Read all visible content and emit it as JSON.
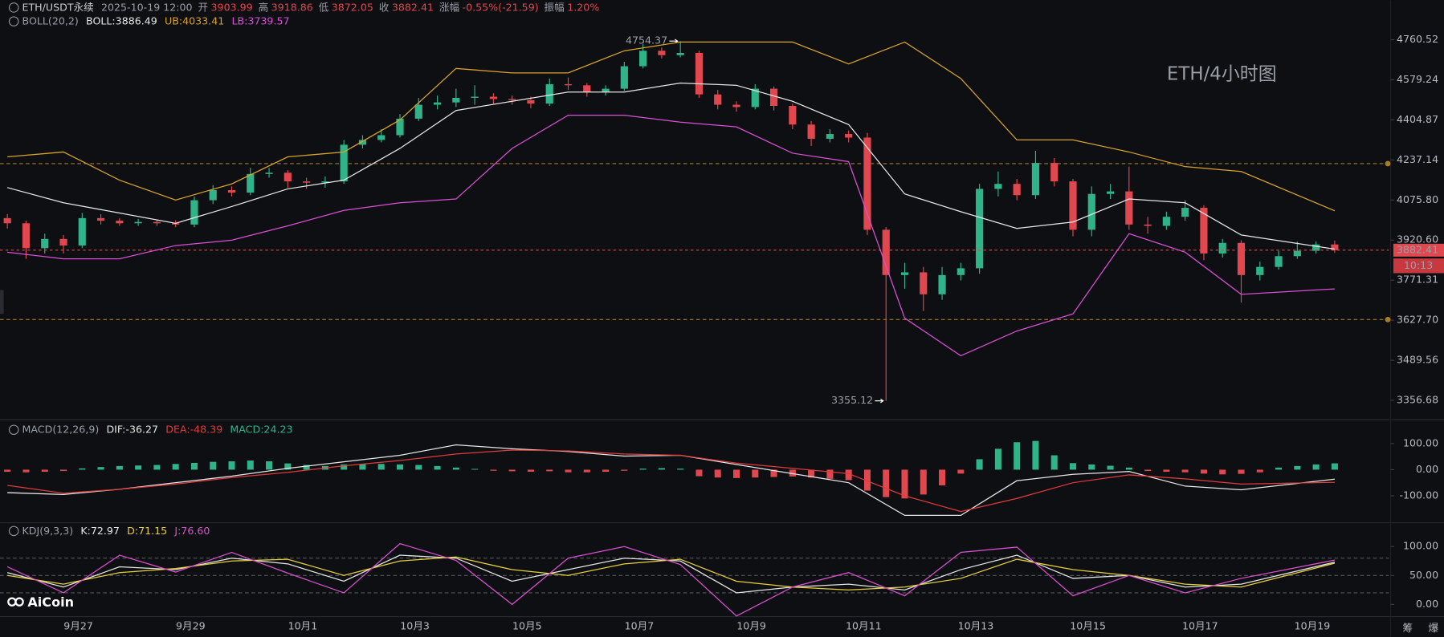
{
  "header": {
    "symbol": "ETH/USDT永续",
    "time": "2025-10-19 12:00",
    "fields": [
      {
        "label": "开",
        "value": "3903.99"
      },
      {
        "label": "高",
        "value": "3918.86"
      },
      {
        "label": "低",
        "value": "3872.05"
      },
      {
        "label": "收",
        "value": "3882.41"
      },
      {
        "label": "涨幅",
        "value": "-0.55%(-21.59)"
      },
      {
        "label": "振幅",
        "value": "1.20%"
      }
    ]
  },
  "countdown": "10:13",
  "watermark": "AiCoin",
  "toolbar": [
    "筹",
    "爆"
  ],
  "chart_data": [
    {
      "type": "candlestick",
      "annotation": "ETH/4小时图",
      "indicator": "BOLL(20,2)",
      "log_scale": true,
      "grid": false,
      "ylim": [
        3312,
        4816
      ],
      "yticks": [
        4760.52,
        4579.24,
        4404.87,
        4237.14,
        {
          "value": 4075.8,
          "label": "4075.80"
        },
        {
          "value": 3920.6,
          "label": "3920.60"
        },
        3771.31,
        {
          "value": 3627.7,
          "label": "3627.70"
        },
        3489.56,
        3356.68
      ],
      "xticks": [
        {
          "value": 3.8,
          "label": "9月27"
        },
        {
          "value": 9.8,
          "label": "9月29"
        },
        {
          "value": 15.8,
          "label": "10月1"
        },
        {
          "value": 21.8,
          "label": "10月3"
        },
        {
          "value": 27.8,
          "label": "10月5"
        },
        {
          "value": 33.8,
          "label": "10月7"
        },
        {
          "value": 39.8,
          "label": "10月9"
        },
        {
          "value": 45.8,
          "label": "10月11"
        },
        {
          "value": 51.8,
          "label": "10月13"
        },
        {
          "value": 57.8,
          "label": "10月15"
        },
        {
          "value": 63.8,
          "label": "10月17"
        },
        {
          "value": 69.8,
          "label": "10月19"
        }
      ],
      "up_color": "#2fb489",
      "down_color": "#e0474f",
      "level_color": "#a87c22",
      "levels": [
        4222,
        3630
      ],
      "candles": {
        "open": [
          4005,
          3985,
          3890,
          3925,
          3900,
          4005,
          3995,
          3985,
          3990,
          3985,
          3980,
          4075,
          4115,
          4105,
          4180,
          4185,
          4150,
          4145,
          4150,
          4300,
          4320,
          4340,
          4410,
          4470,
          4480,
          4500,
          4505,
          4495,
          4490,
          4475,
          4560,
          4555,
          4525,
          4540,
          4640,
          4710,
          4690,
          4700,
          4515,
          4470,
          4460,
          4540,
          4465,
          4385,
          4325,
          4345,
          4330,
          3960,
          3790,
          3800,
          3720,
          3790,
          3815,
          4120,
          4140,
          4095,
          4225,
          4150,
          3960,
          4100,
          4110,
          3980,
          3975,
          4010,
          4045,
          3870,
          3910,
          3790,
          3820,
          3860,
          3880,
          3903.99
        ],
        "high": [
          4020,
          3995,
          3945,
          3940,
          4025,
          4020,
          4005,
          4002,
          4000,
          3997,
          4090,
          4135,
          4130,
          4205,
          4205,
          4195,
          4165,
          4170,
          4320,
          4340,
          4365,
          4430,
          4500,
          4510,
          4540,
          4555,
          4520,
          4510,
          4505,
          4585,
          4590,
          4565,
          4555,
          4660,
          4740,
          4725,
          4754.37,
          4710,
          4535,
          4485,
          4560,
          4550,
          4475,
          4400,
          4365,
          4360,
          4350,
          3970,
          3835,
          3820,
          3820,
          3835,
          4140,
          4190,
          4160,
          4275,
          4245,
          4160,
          4130,
          4140,
          4210,
          4010,
          4030,
          4075,
          4055,
          3925,
          3920,
          3840,
          3880,
          3915,
          3915,
          3918.86
        ],
        "low": [
          3965,
          3850,
          3870,
          3870,
          3890,
          3980,
          3975,
          3975,
          3975,
          3970,
          3970,
          4060,
          4090,
          4095,
          4165,
          4125,
          4120,
          4125,
          4140,
          4285,
          4310,
          4330,
          4400,
          4450,
          4460,
          4470,
          4475,
          4470,
          4455,
          4465,
          4535,
          4505,
          4510,
          4530,
          4630,
          4675,
          4680,
          4500,
          4450,
          4440,
          4450,
          4445,
          4365,
          4295,
          4310,
          4310,
          3940,
          3355.12,
          3740,
          3660,
          3700,
          3770,
          3795,
          4090,
          4075,
          4080,
          4130,
          3935,
          3935,
          4080,
          3960,
          3945,
          3960,
          3995,
          3845,
          3855,
          3690,
          3770,
          3810,
          3850,
          3870,
          3872.05
        ],
        "close": [
          3985,
          3890,
          3925,
          3900,
          4005,
          3995,
          3985,
          3990,
          3985,
          3980,
          4075,
          4115,
          4105,
          4180,
          4185,
          4150,
          4145,
          4150,
          4300,
          4320,
          4340,
          4410,
          4470,
          4480,
          4500,
          4505,
          4495,
          4490,
          4475,
          4560,
          4555,
          4525,
          4540,
          4640,
          4710,
          4690,
          4700,
          4515,
          4470,
          4460,
          4540,
          4465,
          4385,
          4325,
          4345,
          4330,
          3960,
          3790,
          3800,
          3720,
          3790,
          3815,
          4120,
          4140,
          4095,
          4225,
          4150,
          3960,
          4100,
          4110,
          3980,
          3975,
          4010,
          4045,
          3870,
          3910,
          3790,
          3820,
          3860,
          3880,
          3903.99,
          3882.41
        ]
      },
      "high_mark": 36,
      "low_mark": 47,
      "overlay_x": [
        0,
        3,
        6,
        9,
        12,
        15,
        18,
        21,
        24,
        27,
        30,
        33,
        36,
        39,
        42,
        45,
        48,
        51,
        54,
        57,
        60,
        63,
        66,
        71
      ],
      "series": [
        {
          "name": "BOLL",
          "legend": "BOLL:3886.49",
          "color": "#e6e6e6",
          "values": [
            4125,
            4065,
            4025,
            3985,
            4050,
            4120,
            4155,
            4285,
            4445,
            4485,
            4525,
            4525,
            4565,
            4555,
            4485,
            4385,
            4100,
            4030,
            3965,
            3990,
            4080,
            4065,
            3940,
            3886.49
          ]
        },
        {
          "name": "UB",
          "legend": "UB:4033.41",
          "color": "#d9a227",
          "values": [
            4250,
            4270,
            4155,
            4076,
            4140,
            4250,
            4270,
            4405,
            4630,
            4610,
            4610,
            4710,
            4750,
            4750,
            4750,
            4650,
            4750,
            4585,
            4320,
            4320,
            4270,
            4210,
            4190,
            4033.41
          ]
        },
        {
          "name": "LB",
          "legend": "LB:3739.57",
          "color": "#d94fd6",
          "values": [
            3875,
            3850,
            3850,
            3900,
            3920,
            3975,
            4035,
            4065,
            4080,
            4285,
            4425,
            4425,
            4395,
            4375,
            4265,
            4230,
            3635,
            3505,
            3590,
            3650,
            3945,
            3875,
            3720,
            3739.57
          ]
        }
      ]
    },
    {
      "type": "macd",
      "indicator": "MACD(12,26,9)",
      "ylim": [
        -203,
        142
      ],
      "yticks": [
        {
          "value": 100,
          "label": "100.00"
        },
        {
          "value": 0,
          "label": "0.00"
        },
        {
          "value": -100,
          "label": "-100.00"
        }
      ],
      "histogram": {
        "name": "MACD",
        "legend": "MACD:24.23",
        "up_color": "#2fb489",
        "down_color": "#e0474f",
        "values": [
          -8,
          -10,
          -8,
          -5,
          5,
          10,
          14,
          16,
          18,
          22,
          26,
          30,
          32,
          35,
          32,
          24,
          18,
          14,
          20,
          22,
          22,
          20,
          18,
          14,
          8,
          3,
          -4,
          -6,
          -8,
          -6,
          -10,
          -10,
          -8,
          -4,
          4,
          6,
          4,
          -25,
          -30,
          -32,
          -30,
          -28,
          -26,
          -30,
          -35,
          -40,
          -80,
          -105,
          -110,
          -95,
          -60,
          -15,
          40,
          80,
          105,
          110,
          55,
          25,
          20,
          15,
          8,
          -5,
          -8,
          -10,
          -15,
          -18,
          -16,
          -10,
          8,
          14,
          20,
          24.23
        ]
      },
      "overlay_x": [
        0,
        3,
        6,
        9,
        12,
        15,
        18,
        21,
        24,
        27,
        30,
        33,
        36,
        39,
        42,
        45,
        48,
        51,
        54,
        57,
        60,
        63,
        66,
        71
      ],
      "series": [
        {
          "name": "DIF",
          "legend": "DIF:-36.27",
          "color": "#e6e6e6",
          "values": [
            -88,
            -95,
            -75,
            -50,
            -25,
            5,
            30,
            55,
            95,
            80,
            70,
            52,
            55,
            20,
            -15,
            -50,
            -175,
            -175,
            -42,
            -18,
            -7,
            -63,
            -77,
            -36.27
          ]
        },
        {
          "name": "DEA",
          "legend": "DEA:-48.39",
          "color": "#e03a3a",
          "values": [
            -60,
            -90,
            -75,
            -55,
            -30,
            -10,
            15,
            35,
            60,
            75,
            72,
            60,
            55,
            25,
            5,
            -15,
            -100,
            -160,
            -110,
            -50,
            -20,
            -35,
            -55,
            -48.39
          ]
        }
      ]
    },
    {
      "type": "kdj",
      "indicator": "KDJ(9,3,3)",
      "ylim": [
        -21,
        130
      ],
      "yticks": [
        {
          "value": 100,
          "label": "100.00"
        },
        {
          "value": 50,
          "label": "50.00"
        },
        {
          "value": 0,
          "label": "0.00"
        }
      ],
      "levels": [
        80,
        50,
        20
      ],
      "level_color": "#55575c",
      "overlay_x": [
        0,
        3,
        6,
        9,
        12,
        15,
        18,
        21,
        24,
        27,
        30,
        33,
        36,
        39,
        42,
        45,
        48,
        51,
        54,
        57,
        60,
        63,
        66,
        71
      ],
      "series": [
        {
          "name": "K",
          "legend": "K:72.97",
          "color": "#e6e6e6",
          "values": [
            55,
            30,
            65,
            60,
            80,
            70,
            40,
            85,
            80,
            40,
            60,
            80,
            75,
            20,
            30,
            35,
            25,
            60,
            85,
            45,
            50,
            30,
            35,
            72.97
          ]
        },
        {
          "name": "D",
          "legend": "D:71.15",
          "color": "#e8cf3a",
          "values": [
            50,
            35,
            55,
            62,
            75,
            78,
            50,
            75,
            82,
            60,
            50,
            70,
            78,
            40,
            30,
            25,
            30,
            45,
            78,
            60,
            50,
            35,
            30,
            71.15
          ]
        },
        {
          "name": "J",
          "legend": "J:76.60",
          "color": "#d94fcf",
          "values": [
            65,
            20,
            85,
            56,
            90,
            54,
            20,
            105,
            76,
            0,
            80,
            100,
            69,
            -20,
            30,
            55,
            15,
            90,
            99,
            15,
            50,
            20,
            45,
            76.6
          ]
        }
      ]
    }
  ]
}
